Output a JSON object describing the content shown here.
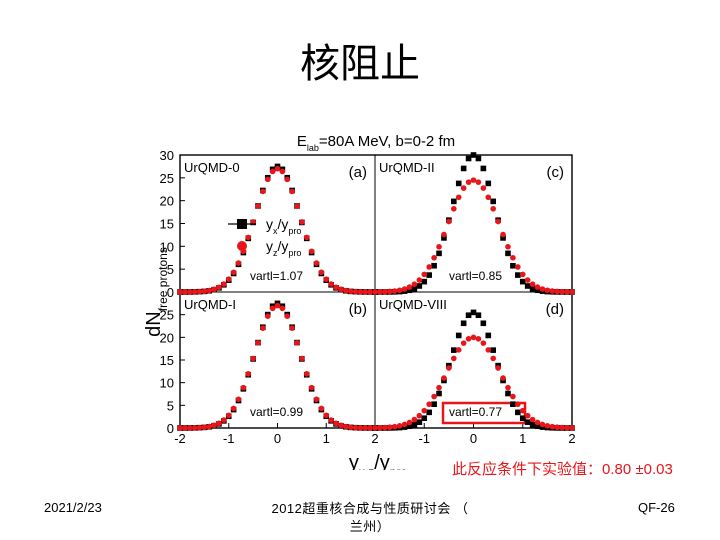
{
  "slide": {
    "title": "核阻止",
    "note": "此反应条件下实验值：0.80 ±0.03",
    "footer_date": "2021/2/23",
    "footer_conf_line1": "2012超重核合成与性质研讨会 （",
    "footer_conf_line2": "兰州）",
    "footer_page": "QF-26"
  },
  "colors": {
    "black_series": "#000000",
    "red_series": "#e8161a",
    "box": "#e8161a"
  },
  "chart_data": {
    "type": "scatter",
    "title": "E_lab=80A MeV, b=0-2 fm",
    "title_parts": {
      "main1": "E",
      "sub": "lab",
      "main2": "=80A MeV, b=0-2 fm"
    },
    "xlabel": {
      "main": "y",
      "sub": "x,z",
      "main2": "/y",
      "sub2": "pro"
    },
    "ylabel": {
      "main": "dN",
      "sub": "free protons"
    },
    "xlim": [
      -2,
      2
    ],
    "ylim": [
      0,
      30
    ],
    "x_ticks": [
      "-2",
      "-1",
      "0",
      "1",
      "2"
    ],
    "y_ticks_top": [
      "0",
      "5",
      "10",
      "15",
      "20",
      "25",
      "30"
    ],
    "y_ticks_bottom": [
      "0",
      "5",
      "10",
      "15",
      "20",
      "25"
    ],
    "legend": {
      "placement": "panel (a), center-left",
      "entries": [
        {
          "main": "y",
          "sub": "x",
          "main2": "/y",
          "sub2": "pro",
          "marker": "square",
          "color": "#000000"
        },
        {
          "main": "y",
          "sub": "z",
          "main2": "/y",
          "sub2": "pro",
          "marker": "circle",
          "color": "#e8161a"
        }
      ]
    },
    "panels": [
      {
        "id": "a",
        "model": "UrQMD-0",
        "label": "(a)",
        "vartl": "vartl=1.07",
        "peak_x": 27.5,
        "peak_z": 27.0,
        "sigma_x": 0.46,
        "sigma_z": 0.47,
        "boxed": false
      },
      {
        "id": "c",
        "model": "UrQMD-II",
        "label": "(c)",
        "vartl": "vartl=0.85",
        "peak_x": 30.0,
        "peak_z": 24.5,
        "sigma_x": 0.44,
        "sigma_z": 0.52,
        "boxed": false
      },
      {
        "id": "b",
        "model": "UrQMD-I",
        "label": "(b)",
        "vartl": "vartl=0.99",
        "peak_x": 27.5,
        "peak_z": 27.0,
        "sigma_x": 0.46,
        "sigma_z": 0.47,
        "boxed": false
      },
      {
        "id": "d",
        "model": "UrQMD-VIII",
        "label": "(d)",
        "vartl": "vartl=0.77",
        "peak_x": 25.5,
        "peak_z": 20.0,
        "sigma_x": 0.45,
        "sigma_z": 0.55,
        "boxed": true
      }
    ]
  }
}
